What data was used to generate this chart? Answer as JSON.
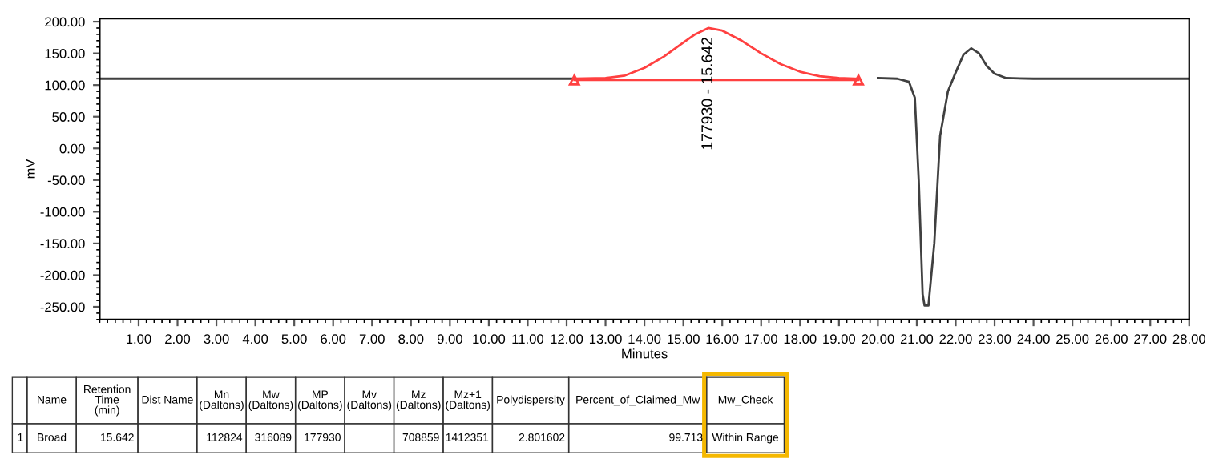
{
  "chart_data": {
    "type": "line",
    "xlabel": "Minutes",
    "ylabel": "mV",
    "xlim": [
      0,
      28
    ],
    "ylim": [
      -270,
      205
    ],
    "xticks": [
      {
        "value": 1,
        "label": "1.00"
      },
      {
        "value": 2,
        "label": "2.00"
      },
      {
        "value": 3,
        "label": "3.00"
      },
      {
        "value": 4,
        "label": "4.00"
      },
      {
        "value": 5,
        "label": "5.00"
      },
      {
        "value": 6,
        "label": "6.00"
      },
      {
        "value": 7,
        "label": "7.00"
      },
      {
        "value": 8,
        "label": "8.00"
      },
      {
        "value": 9,
        "label": "9.00"
      },
      {
        "value": 10,
        "label": "10.00"
      },
      {
        "value": 11,
        "label": "11.00"
      },
      {
        "value": 12,
        "label": "12.00"
      },
      {
        "value": 13,
        "label": "13.00"
      },
      {
        "value": 14,
        "label": "14.00"
      },
      {
        "value": 15,
        "label": "15.00"
      },
      {
        "value": 16,
        "label": "16.00"
      },
      {
        "value": 17,
        "label": "17.00"
      },
      {
        "value": 18,
        "label": "18.00"
      },
      {
        "value": 19,
        "label": "19.00"
      },
      {
        "value": 20,
        "label": "20.00"
      },
      {
        "value": 21,
        "label": "21.00"
      },
      {
        "value": 22,
        "label": "22.00"
      },
      {
        "value": 23,
        "label": "23.00"
      },
      {
        "value": 24,
        "label": "24.00"
      },
      {
        "value": 25,
        "label": "25.00"
      },
      {
        "value": 26,
        "label": "26.00"
      },
      {
        "value": 27,
        "label": "27.00"
      },
      {
        "value": 28,
        "label": "28.00"
      }
    ],
    "yticks": [
      {
        "value": -250,
        "label": "-250.00"
      },
      {
        "value": -200,
        "label": "-200.00"
      },
      {
        "value": -150,
        "label": "-150.00"
      },
      {
        "value": -100,
        "label": "-100.00"
      },
      {
        "value": -50,
        "label": "-50.00"
      },
      {
        "value": 0,
        "label": "0.00"
      },
      {
        "value": 50,
        "label": "50.00"
      },
      {
        "value": 100,
        "label": "100.00"
      },
      {
        "value": 150,
        "label": "150.00"
      },
      {
        "value": 200,
        "label": "200.00"
      }
    ],
    "grid": false,
    "legend": false,
    "series": [
      {
        "color": "#404040",
        "x": [
          0,
          12.2,
          19.5,
          20.0,
          20.5,
          20.8,
          20.95,
          21.05,
          21.15,
          21.2,
          21.3,
          21.45,
          21.6,
          21.8,
          22.0,
          22.2,
          22.4,
          22.6,
          22.8,
          23.0,
          23.3,
          24,
          28
        ],
        "values": [
          110,
          110,
          null,
          111,
          110,
          105,
          80,
          -50,
          -230,
          -248,
          -248,
          -150,
          20,
          90,
          120,
          148,
          158,
          150,
          130,
          118,
          111,
          110,
          110
        ]
      },
      {
        "color": "#ff4040",
        "x": [
          12.2,
          13.0,
          13.5,
          14.0,
          14.5,
          15.0,
          15.3,
          15.642,
          16.0,
          16.5,
          17.0,
          17.5,
          18.0,
          18.5,
          19.0,
          19.5
        ],
        "values": [
          110,
          111,
          115,
          127,
          145,
          167,
          180,
          190,
          186,
          170,
          150,
          133,
          121,
          114,
          111,
          110
        ]
      },
      {
        "color": "#ff4040",
        "marker": "triangle",
        "x": [
          12.2,
          19.5
        ],
        "values": [
          108,
          108
        ]
      }
    ],
    "annotations": [
      {
        "text": "177930 - 15.642",
        "x": 15.642,
        "y": 190
      },
      null,
      "Name",
      "Retention\nTime\n(min)",
      "Dist Name",
      "Mn\n(Daltons)",
      "Mw\n(Daltons)",
      "MP\n(Daltons)",
      "Mv\n(Daltons)",
      "Mz\n(Daltons)",
      "Mz+1\n(Daltons)",
      "Polydispersity",
      "Percent_of_Claimed_Mw",
      "Mw_Check",
      "1",
      "Broad",
      "15.642",
      null,
      "112824",
      "316089",
      "177930",
      null,
      "708859",
      "1412351",
      "2.801602",
      "99.713",
      "Within Range"
    ]
  }
}
